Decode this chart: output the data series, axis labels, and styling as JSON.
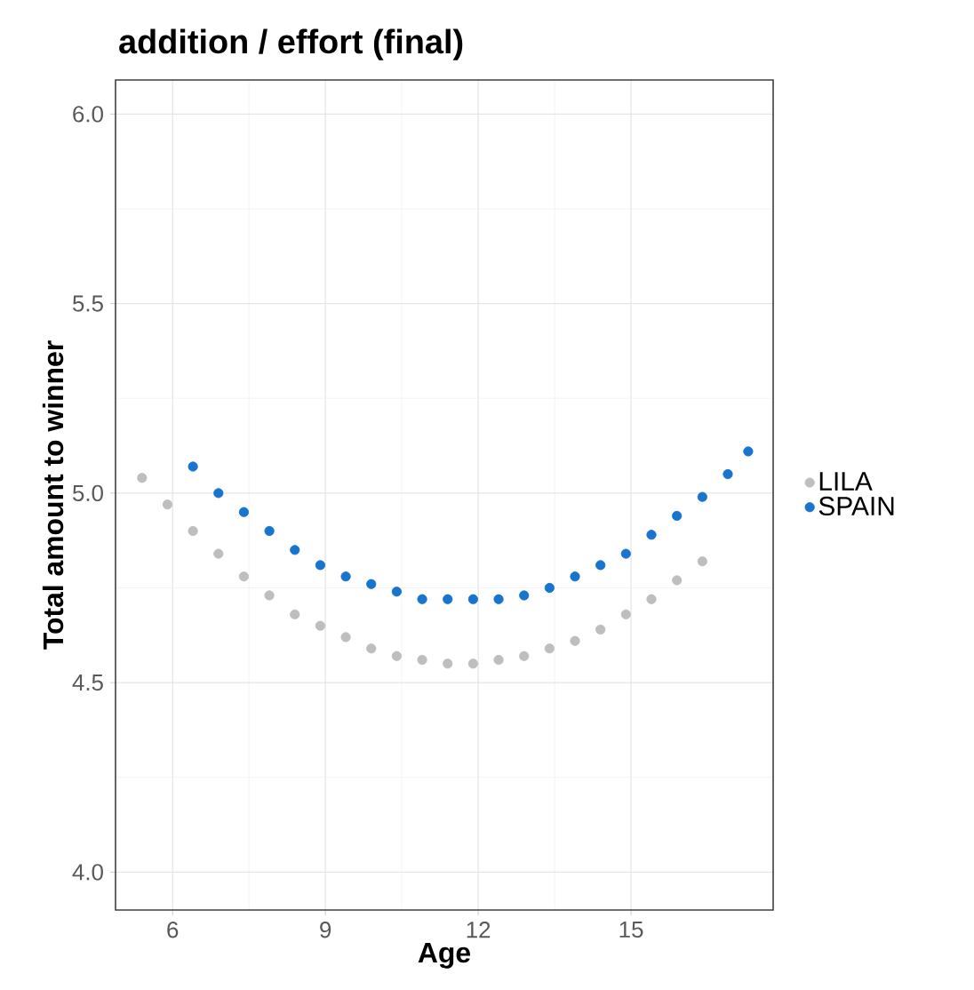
{
  "chart_data": {
    "type": "scatter",
    "title": "addition / effort (final)",
    "xlabel": "Age",
    "ylabel": "Total amount to winner",
    "xlim": [
      4.88,
      17.79
    ],
    "ylim": [
      3.9,
      6.09
    ],
    "xticks": [
      6,
      9,
      12,
      15
    ],
    "yticks": [
      {
        "value": 4,
        "label": "4.0"
      },
      {
        "value": 4.5,
        "label": "4.5"
      },
      {
        "value": 5,
        "label": "5.0"
      },
      {
        "value": 5.5,
        "label": "5.5"
      },
      {
        "value": 6,
        "label": "6.0"
      }
    ],
    "grid": true,
    "legend": "right",
    "marker": "circle",
    "series": [
      {
        "name": "LILA",
        "color": "#bebebe",
        "x": [
          5.4,
          5.9,
          6.4,
          6.9,
          7.4,
          7.9,
          8.4,
          8.9,
          9.4,
          9.9,
          10.4,
          10.9,
          11.4,
          11.9,
          12.4,
          12.9,
          13.4,
          13.9,
          14.4,
          14.9,
          15.4,
          15.9,
          16.4
        ],
        "values": [
          5.04,
          4.97,
          4.9,
          4.84,
          4.78,
          4.73,
          4.68,
          4.65,
          4.62,
          4.59,
          4.57,
          4.56,
          4.55,
          4.55,
          4.56,
          4.57,
          4.59,
          4.61,
          4.64,
          4.68,
          4.72,
          4.77,
          4.82
        ]
      },
      {
        "name": "SPAIN",
        "color": "#1874cd",
        "x": [
          6.4,
          6.9,
          7.4,
          7.9,
          8.4,
          8.9,
          9.4,
          9.9,
          10.4,
          10.9,
          11.4,
          11.9,
          12.4,
          12.9,
          13.4,
          13.9,
          14.4,
          14.9,
          15.4,
          15.9,
          16.4,
          16.9,
          17.3
        ],
        "values": [
          5.07,
          5.0,
          4.95,
          4.9,
          4.85,
          4.81,
          4.78,
          4.76,
          4.74,
          4.72,
          4.72,
          4.72,
          4.72,
          4.73,
          4.75,
          4.78,
          4.81,
          4.84,
          4.89,
          4.94,
          4.99,
          5.05,
          5.11
        ]
      }
    ]
  }
}
